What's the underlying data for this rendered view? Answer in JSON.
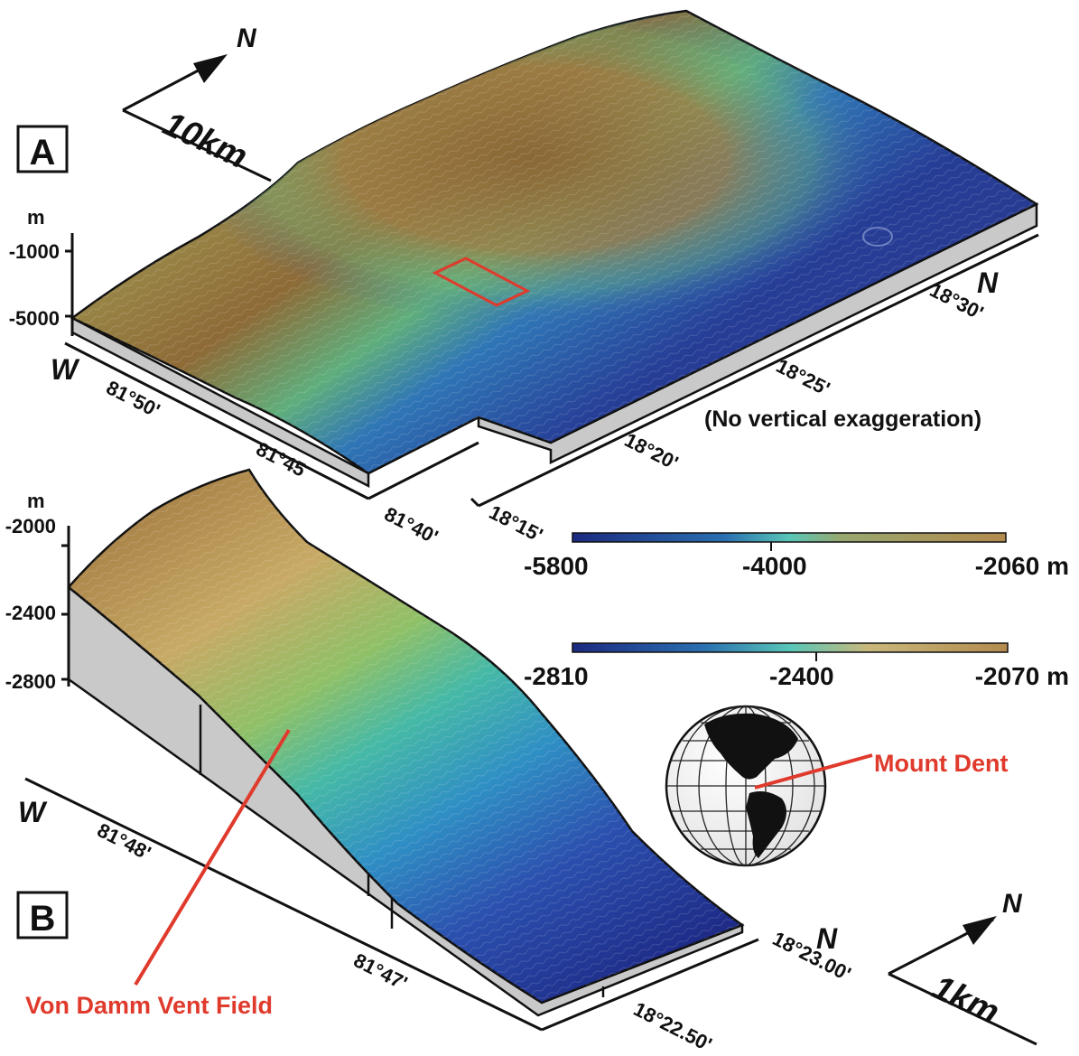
{
  "panel_a": {
    "label": "A",
    "north_arrow": "N",
    "scale_bar": "10km",
    "depth_unit": "m",
    "depth_ticks": [
      "-1000",
      "-5000"
    ],
    "west_label": "W",
    "north_label": "N",
    "lon_ticks": [
      "81°50'",
      "81°45",
      "81°40'"
    ],
    "lat_ticks": [
      "18°15'",
      "18°20'",
      "18°25'",
      "18°30'"
    ],
    "note": "(No vertical exaggeration)",
    "colorbar": {
      "min": "-5800",
      "mid": "-4000",
      "max": "-2060 m"
    }
  },
  "panel_b": {
    "label": "B",
    "north_arrow": "N",
    "scale_bar": "1km",
    "depth_unit": "m",
    "depth_ticks": [
      "-2000",
      "-2400",
      "-2800"
    ],
    "west_label": "W",
    "north_label": "N",
    "lon_ticks": [
      "81°48'",
      "81°47'"
    ],
    "lat_ticks": [
      "18°23.00'",
      "18°22.50'"
    ],
    "colorbar": {
      "min": "-2810",
      "mid": "-2400",
      "max": "-2070 m"
    }
  },
  "annotations": {
    "mount_dent": "Mount Dent",
    "vent_field": "Von Damm Vent Field"
  },
  "colors": {
    "deep": "#1c2a80",
    "mid": "#37b3b0",
    "shallow": "#a07a3e",
    "highlight": "#e03a2c",
    "side": "#c9c9c9"
  }
}
